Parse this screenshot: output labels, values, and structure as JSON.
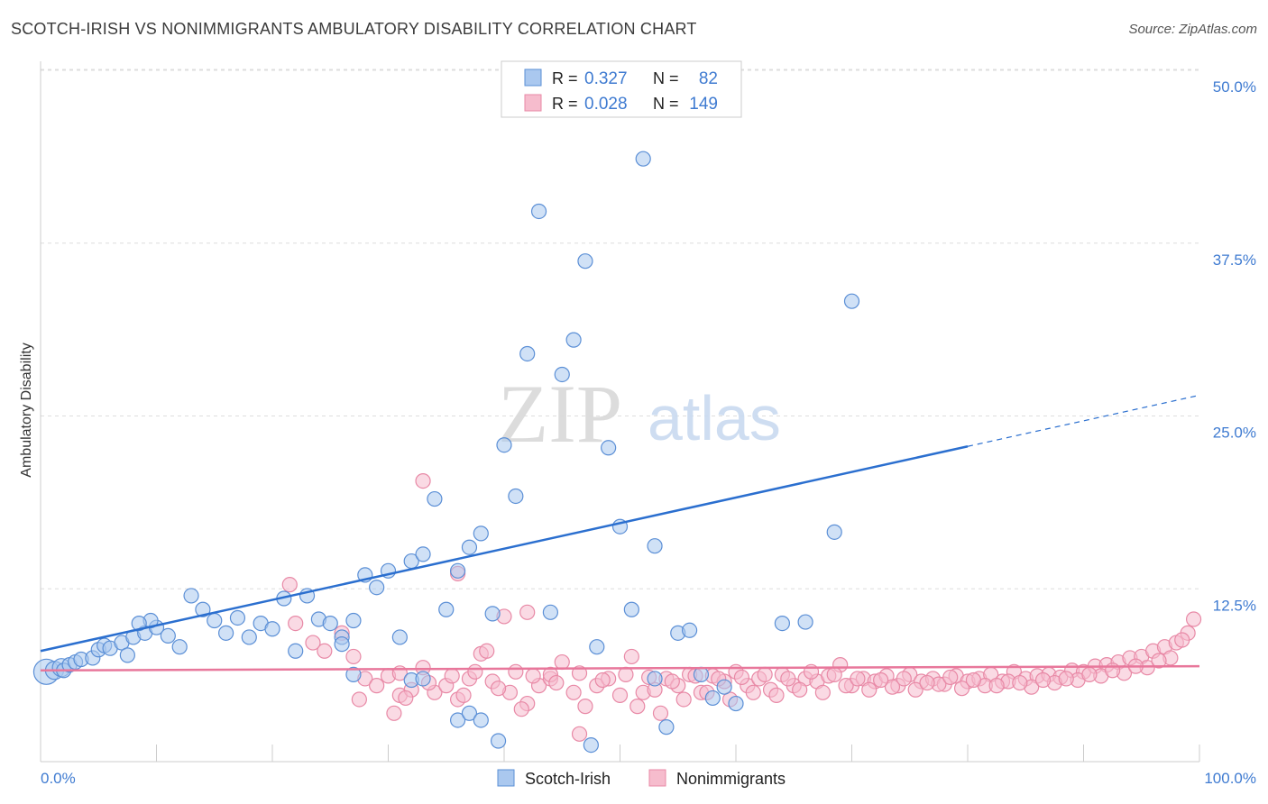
{
  "title": "SCOTCH-IRISH VS NONIMMIGRANTS AMBULATORY DISABILITY CORRELATION CHART",
  "source": "Source: ZipAtlas.com",
  "watermark": {
    "zip": "ZIP",
    "atlas": "atlas"
  },
  "colors": {
    "blue_fill": "#aac8ef",
    "blue_stroke": "#5b8fd6",
    "blue_line": "#2b6fcf",
    "pink_fill": "#f6bccd",
    "pink_stroke": "#e889a6",
    "pink_line": "#e8779b",
    "tick_label": "#3f7bd1",
    "grid": "#dddddd"
  },
  "legend": {
    "r_label": "R =",
    "n_label": "N =",
    "rows": [
      {
        "series": "blue",
        "r": "0.327",
        "n": "82"
      },
      {
        "series": "pink",
        "r": "0.028",
        "n": "149"
      }
    ]
  },
  "chart_data": {
    "type": "scatter",
    "xlabel": "",
    "ylabel": "Ambulatory Disability",
    "xlim": [
      0,
      100
    ],
    "ylim": [
      0,
      50
    ],
    "x_tick_labels": [
      "0.0%",
      "100.0%"
    ],
    "y_ticks": [
      12.5,
      25.0,
      37.5,
      50.0
    ],
    "y_tick_labels": [
      "12.5%",
      "25.0%",
      "37.5%",
      "50.0%"
    ],
    "grid": "horizontal dashed",
    "legend_placement": "top-center",
    "series": [
      {
        "name": "Scotch-Irish",
        "color": "blue",
        "r": 0.327,
        "n": 82,
        "trend": {
          "x": [
            0,
            80
          ],
          "y": [
            8.0,
            22.8
          ]
        },
        "trend_extension": {
          "x": [
            80,
            100
          ],
          "y": [
            22.8,
            26.5
          ]
        },
        "points": [
          [
            0.5,
            6.5
          ],
          [
            1.2,
            6.6
          ],
          [
            1.8,
            6.8
          ],
          [
            2.0,
            6.6
          ],
          [
            2.5,
            7.0
          ],
          [
            3.0,
            7.2
          ],
          [
            3.5,
            7.4
          ],
          [
            4.5,
            7.5
          ],
          [
            5.0,
            8.1
          ],
          [
            5.5,
            8.4
          ],
          [
            6.0,
            8.2
          ],
          [
            7.0,
            8.6
          ],
          [
            8.0,
            9.0
          ],
          [
            9.0,
            9.3
          ],
          [
            10.0,
            9.7
          ],
          [
            11.0,
            9.1
          ],
          [
            12.0,
            8.3
          ],
          [
            9.5,
            10.2
          ],
          [
            8.5,
            10.0
          ],
          [
            7.5,
            7.7
          ],
          [
            13.0,
            12.0
          ],
          [
            14.0,
            11.0
          ],
          [
            15.0,
            10.2
          ],
          [
            16.0,
            9.3
          ],
          [
            17.0,
            10.4
          ],
          [
            18.0,
            9.0
          ],
          [
            19.0,
            10.0
          ],
          [
            20.0,
            9.6
          ],
          [
            21.0,
            11.8
          ],
          [
            22.0,
            8.0
          ],
          [
            23.0,
            12.0
          ],
          [
            24.0,
            10.3
          ],
          [
            25.0,
            10.0
          ],
          [
            26.0,
            9.0
          ],
          [
            27.0,
            10.2
          ],
          [
            28.0,
            13.5
          ],
          [
            29.0,
            12.6
          ],
          [
            30.0,
            13.8
          ],
          [
            31.0,
            9.0
          ],
          [
            32.0,
            14.5
          ],
          [
            33.0,
            15.0
          ],
          [
            34.0,
            19.0
          ],
          [
            35.0,
            11.0
          ],
          [
            36.0,
            13.8
          ],
          [
            37.0,
            15.5
          ],
          [
            38.0,
            16.5
          ],
          [
            39.0,
            10.7
          ],
          [
            40.0,
            22.9
          ],
          [
            41.0,
            19.2
          ],
          [
            42.0,
            29.5
          ],
          [
            43.0,
            39.8
          ],
          [
            44.0,
            10.8
          ],
          [
            45.0,
            28.0
          ],
          [
            46.0,
            30.5
          ],
          [
            47.0,
            36.2
          ],
          [
            48.0,
            8.3
          ],
          [
            49.0,
            22.7
          ],
          [
            50.0,
            17.0
          ],
          [
            51.0,
            11.0
          ],
          [
            52.0,
            43.6
          ],
          [
            53.0,
            15.6
          ],
          [
            55.0,
            9.3
          ],
          [
            56.0,
            9.5
          ],
          [
            57.0,
            6.3
          ],
          [
            58.0,
            4.6
          ],
          [
            59.0,
            5.4
          ],
          [
            60.0,
            4.2
          ],
          [
            26.0,
            8.5
          ],
          [
            27.0,
            6.3
          ],
          [
            32.0,
            5.9
          ],
          [
            33.0,
            6.0
          ],
          [
            36.0,
            3.0
          ],
          [
            37.0,
            3.5
          ],
          [
            38.0,
            3.0
          ],
          [
            39.5,
            1.5
          ],
          [
            47.5,
            1.2
          ],
          [
            53.0,
            6.0
          ],
          [
            54.0,
            2.5
          ],
          [
            64.0,
            10.0
          ],
          [
            66.0,
            10.1
          ],
          [
            68.5,
            16.6
          ],
          [
            70.0,
            33.3
          ]
        ]
      },
      {
        "name": "Nonimmigrants",
        "color": "pink",
        "r": 0.028,
        "n": 149,
        "trend": {
          "x": [
            0,
            100
          ],
          "y": [
            6.6,
            6.9
          ]
        },
        "points": [
          [
            21.5,
            12.8
          ],
          [
            22.0,
            10.0
          ],
          [
            23.5,
            8.6
          ],
          [
            24.5,
            8.0
          ],
          [
            26.0,
            9.3
          ],
          [
            27.0,
            7.6
          ],
          [
            28.0,
            6.0
          ],
          [
            29.0,
            5.5
          ],
          [
            30.0,
            6.2
          ],
          [
            31.0,
            4.8
          ],
          [
            32.0,
            5.2
          ],
          [
            33.0,
            6.8
          ],
          [
            34.0,
            5.0
          ],
          [
            35.0,
            5.5
          ],
          [
            36.0,
            4.5
          ],
          [
            37.0,
            6.0
          ],
          [
            38.0,
            7.8
          ],
          [
            39.0,
            5.8
          ],
          [
            40.0,
            10.5
          ],
          [
            41.0,
            6.5
          ],
          [
            42.0,
            4.2
          ],
          [
            43.0,
            5.5
          ],
          [
            44.0,
            6.0
          ],
          [
            45.0,
            7.2
          ],
          [
            46.0,
            5.0
          ],
          [
            47.0,
            4.0
          ],
          [
            48.0,
            5.5
          ],
          [
            49.0,
            6.0
          ],
          [
            50.0,
            4.8
          ],
          [
            51.0,
            7.6
          ],
          [
            52.0,
            5.0
          ],
          [
            53.0,
            5.2
          ],
          [
            54.0,
            6.0
          ],
          [
            55.0,
            5.5
          ],
          [
            56.0,
            6.3
          ],
          [
            57.0,
            5.0
          ],
          [
            58.0,
            6.2
          ],
          [
            59.0,
            5.8
          ],
          [
            60.0,
            6.5
          ],
          [
            61.0,
            5.5
          ],
          [
            62.0,
            6.0
          ],
          [
            63.0,
            5.2
          ],
          [
            64.0,
            6.3
          ],
          [
            65.0,
            5.5
          ],
          [
            66.0,
            6.0
          ],
          [
            67.0,
            5.8
          ],
          [
            68.0,
            6.2
          ],
          [
            69.0,
            7.0
          ],
          [
            70.0,
            5.5
          ],
          [
            71.0,
            6.0
          ],
          [
            72.0,
            5.8
          ],
          [
            73.0,
            6.2
          ],
          [
            74.0,
            5.5
          ],
          [
            75.0,
            6.3
          ],
          [
            76.0,
            5.8
          ],
          [
            77.0,
            6.0
          ],
          [
            78.0,
            5.6
          ],
          [
            79.0,
            6.2
          ],
          [
            80.0,
            5.8
          ],
          [
            81.0,
            6.0
          ],
          [
            82.0,
            6.3
          ],
          [
            83.0,
            5.8
          ],
          [
            84.0,
            6.5
          ],
          [
            85.0,
            6.0
          ],
          [
            86.0,
            6.2
          ],
          [
            87.0,
            6.3
          ],
          [
            88.0,
            6.1
          ],
          [
            89.0,
            6.6
          ],
          [
            90.0,
            6.5
          ],
          [
            91.0,
            6.9
          ],
          [
            92.0,
            7.0
          ],
          [
            93.0,
            7.2
          ],
          [
            94.0,
            7.5
          ],
          [
            95.0,
            7.6
          ],
          [
            96.0,
            8.0
          ],
          [
            97.0,
            8.3
          ],
          [
            98.0,
            8.6
          ],
          [
            99.0,
            9.3
          ],
          [
            99.5,
            10.3
          ],
          [
            33.0,
            20.3
          ],
          [
            36.0,
            13.6
          ],
          [
            42.0,
            10.8
          ],
          [
            44.0,
            6.3
          ],
          [
            38.5,
            8.0
          ],
          [
            30.5,
            3.5
          ],
          [
            27.5,
            4.5
          ],
          [
            31.5,
            4.6
          ],
          [
            36.5,
            4.8
          ],
          [
            40.5,
            5.0
          ],
          [
            41.5,
            3.8
          ],
          [
            46.5,
            2.0
          ],
          [
            51.5,
            4.0
          ],
          [
            53.5,
            3.5
          ],
          [
            55.5,
            4.5
          ],
          [
            57.5,
            5.0
          ],
          [
            59.5,
            4.5
          ],
          [
            61.5,
            5.0
          ],
          [
            63.5,
            4.8
          ],
          [
            65.5,
            5.2
          ],
          [
            67.5,
            5.0
          ],
          [
            69.5,
            5.5
          ],
          [
            71.5,
            5.2
          ],
          [
            73.5,
            5.4
          ],
          [
            75.5,
            5.2
          ],
          [
            77.5,
            5.6
          ],
          [
            79.5,
            5.3
          ],
          [
            81.5,
            5.5
          ],
          [
            83.5,
            5.8
          ],
          [
            85.5,
            5.4
          ],
          [
            87.5,
            5.7
          ],
          [
            89.5,
            5.9
          ],
          [
            91.5,
            6.2
          ],
          [
            93.5,
            6.4
          ],
          [
            95.5,
            6.8
          ],
          [
            97.5,
            7.5
          ],
          [
            98.5,
            8.8
          ],
          [
            96.5,
            7.3
          ],
          [
            94.5,
            6.9
          ],
          [
            92.5,
            6.6
          ],
          [
            90.5,
            6.3
          ],
          [
            88.5,
            6.0
          ],
          [
            86.5,
            5.9
          ],
          [
            84.5,
            5.7
          ],
          [
            82.5,
            5.5
          ],
          [
            80.5,
            5.9
          ],
          [
            78.5,
            6.1
          ],
          [
            76.5,
            5.7
          ],
          [
            74.5,
            6.0
          ],
          [
            72.5,
            5.9
          ],
          [
            70.5,
            6.0
          ],
          [
            68.5,
            6.3
          ],
          [
            66.5,
            6.5
          ],
          [
            64.5,
            6.0
          ],
          [
            62.5,
            6.3
          ],
          [
            60.5,
            6.1
          ],
          [
            58.5,
            6.0
          ],
          [
            56.5,
            6.2
          ],
          [
            54.5,
            5.8
          ],
          [
            52.5,
            6.1
          ],
          [
            50.5,
            6.3
          ],
          [
            48.5,
            5.9
          ],
          [
            46.5,
            6.4
          ],
          [
            44.5,
            5.7
          ],
          [
            42.5,
            6.2
          ],
          [
            39.5,
            5.3
          ],
          [
            37.5,
            6.5
          ],
          [
            35.5,
            6.2
          ],
          [
            33.5,
            5.7
          ],
          [
            31.0,
            6.4
          ]
        ]
      }
    ]
  }
}
